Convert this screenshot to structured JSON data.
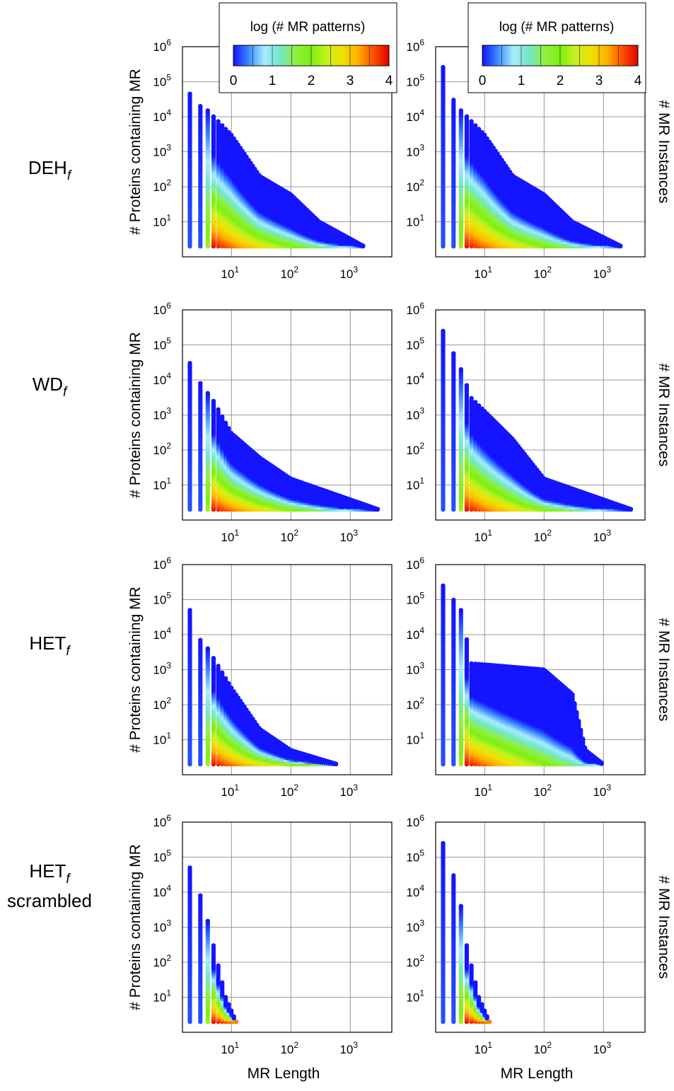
{
  "colorbar": {
    "title": "log (# MR patterns)",
    "ticks": [
      "0",
      "1",
      "2",
      "3",
      "4"
    ],
    "stops": [
      "#1414ff",
      "#3c8cff",
      "#a8ecff",
      "#70e8c8",
      "#90f040",
      "#7cf010",
      "#c8f020",
      "#f0e000",
      "#ffb000",
      "#ff5000",
      "#e00000"
    ]
  },
  "row_labels": [
    {
      "text": "DEH",
      "sub": "f",
      "line2": ""
    },
    {
      "text": "WD",
      "sub": "f",
      "line2": ""
    },
    {
      "text": "HET",
      "sub": "f",
      "line2": ""
    },
    {
      "text": "HET",
      "sub": "f",
      "line2": "scrambled"
    }
  ],
  "left_ylabel": "# Proteins containing MR",
  "right_ylabel": "# MR Instances",
  "xlabel": "MR Length",
  "x_ticks": [
    {
      "b": "10",
      "e": "1"
    },
    {
      "b": "10",
      "e": "2"
    },
    {
      "b": "10",
      "e": "3"
    }
  ],
  "y_ticks": [
    {
      "b": "10",
      "e": "1"
    },
    {
      "b": "10",
      "e": "2"
    },
    {
      "b": "10",
      "e": "3"
    },
    {
      "b": "10",
      "e": "4"
    },
    {
      "b": "10",
      "e": "5"
    },
    {
      "b": "10",
      "e": "6"
    }
  ],
  "chart_data": [
    {
      "type": "scatter",
      "panel": "DEHf - proteins",
      "xlabel": "",
      "ylabel": "# Proteins containing MR",
      "xscale": "log",
      "yscale": "log",
      "xlim": [
        1.5,
        5000
      ],
      "ylim": [
        1,
        1000000
      ],
      "grid": true,
      "color_scale": "log (# MR patterns)",
      "series": [
        {
          "values": [
            {
              "length": 2,
              "ymax": 45000
            },
            {
              "length": 3,
              "ymax": 20000
            },
            {
              "length": 4,
              "ymax": 15000
            },
            {
              "length": 10,
              "ymax": 3000
            },
            {
              "length": 30,
              "ymax": 200
            },
            {
              "length": 100,
              "ymax": 60
            },
            {
              "length": 300,
              "ymax": 10
            },
            {
              "length": 1700,
              "ymax": 2
            }
          ]
        }
      ]
    },
    {
      "type": "scatter",
      "panel": "DEHf - instances",
      "xlabel": "",
      "ylabel": "# MR Instances",
      "xscale": "log",
      "yscale": "log",
      "xlim": [
        1.5,
        5000
      ],
      "ylim": [
        1,
        1000000
      ],
      "grid": true,
      "color_scale": "log (# MR patterns)",
      "series": [
        {
          "values": [
            {
              "length": 2,
              "ymax": 260000
            },
            {
              "length": 3,
              "ymax": 30000
            },
            {
              "length": 4,
              "ymax": 15000
            },
            {
              "length": 10,
              "ymax": 3000
            },
            {
              "length": 30,
              "ymax": 200
            },
            {
              "length": 100,
              "ymax": 60
            },
            {
              "length": 300,
              "ymax": 10
            },
            {
              "length": 2000,
              "ymax": 2
            }
          ]
        }
      ]
    },
    {
      "type": "scatter",
      "panel": "WDf - proteins",
      "xlabel": "",
      "ylabel": "# Proteins containing MR",
      "xscale": "log",
      "yscale": "log",
      "xlim": [
        1.5,
        5000
      ],
      "ylim": [
        1,
        1000000
      ],
      "grid": true,
      "color_scale": "log (# MR patterns)",
      "series": [
        {
          "values": [
            {
              "length": 2,
              "ymax": 30000
            },
            {
              "length": 3,
              "ymax": 8000
            },
            {
              "length": 5,
              "ymax": 2500
            },
            {
              "length": 10,
              "ymax": 300
            },
            {
              "length": 30,
              "ymax": 60
            },
            {
              "length": 100,
              "ymax": 15
            },
            {
              "length": 3000,
              "ymax": 2
            }
          ]
        }
      ]
    },
    {
      "type": "scatter",
      "panel": "WDf - instances",
      "xlabel": "",
      "ylabel": "# MR Instances",
      "xscale": "log",
      "yscale": "log",
      "xlim": [
        1.5,
        5000
      ],
      "ylim": [
        1,
        1000000
      ],
      "grid": true,
      "color_scale": "log (# MR patterns)",
      "series": [
        {
          "values": [
            {
              "length": 2,
              "ymax": 250000
            },
            {
              "length": 4,
              "ymax": 20000
            },
            {
              "length": 6,
              "ymax": 3000
            },
            {
              "length": 30,
              "ymax": 200
            },
            {
              "length": 100,
              "ymax": 15
            },
            {
              "length": 3000,
              "ymax": 2
            }
          ]
        }
      ]
    },
    {
      "type": "scatter",
      "panel": "HETf - proteins",
      "xlabel": "",
      "ylabel": "# Proteins containing MR",
      "xscale": "log",
      "yscale": "log",
      "xlim": [
        1.5,
        5000
      ],
      "ylim": [
        1,
        1000000
      ],
      "grid": true,
      "color_scale": "log (# MR patterns)",
      "series": [
        {
          "values": [
            {
              "length": 2,
              "ymax": 50000
            },
            {
              "length": 3,
              "ymax": 7000
            },
            {
              "length": 4,
              "ymax": 4000
            },
            {
              "length": 10,
              "ymax": 300
            },
            {
              "length": 30,
              "ymax": 20
            },
            {
              "length": 100,
              "ymax": 5
            },
            {
              "length": 600,
              "ymax": 2
            }
          ]
        }
      ]
    },
    {
      "type": "scatter",
      "panel": "HETf - instances",
      "xlabel": "",
      "ylabel": "# MR Instances",
      "xscale": "log",
      "yscale": "log",
      "xlim": [
        1.5,
        5000
      ],
      "ylim": [
        1,
        1000000
      ],
      "grid": true,
      "color_scale": "log (# MR patterns)",
      "series": [
        {
          "values": [
            {
              "length": 2,
              "ymax": 250000
            },
            {
              "length": 4,
              "ymax": 50000
            },
            {
              "length": 6,
              "ymax": 1500
            },
            {
              "length": 100,
              "ymax": 1000
            },
            {
              "length": 300,
              "ymax": 200
            },
            {
              "length": 500,
              "ymax": 5
            },
            {
              "length": 1000,
              "ymax": 2
            }
          ]
        }
      ]
    },
    {
      "type": "scatter",
      "panel": "HETf scrambled - proteins",
      "xlabel": "MR Length",
      "ylabel": "# Proteins containing MR",
      "xscale": "log",
      "yscale": "log",
      "xlim": [
        1.5,
        5000
      ],
      "ylim": [
        1,
        1000000
      ],
      "grid": true,
      "color_scale": "log (# MR patterns)",
      "series": [
        {
          "values": [
            {
              "length": 2,
              "ymax": 50000
            },
            {
              "length": 3,
              "ymax": 8000
            },
            {
              "length": 4,
              "ymax": 1500
            },
            {
              "length": 5,
              "ymax": 300
            },
            {
              "length": 8,
              "ymax": 10
            },
            {
              "length": 12,
              "ymax": 2
            }
          ]
        }
      ]
    },
    {
      "type": "scatter",
      "panel": "HETf scrambled - instances",
      "xlabel": "MR Length",
      "ylabel": "# MR Instances",
      "xscale": "log",
      "yscale": "log",
      "xlim": [
        1.5,
        5000
      ],
      "ylim": [
        1,
        1000000
      ],
      "grid": true,
      "color_scale": "log (# MR patterns)",
      "series": [
        {
          "values": [
            {
              "length": 2,
              "ymax": 250000
            },
            {
              "length": 3,
              "ymax": 30000
            },
            {
              "length": 4,
              "ymax": 4000
            },
            {
              "length": 5,
              "ymax": 300
            },
            {
              "length": 8,
              "ymax": 10
            },
            {
              "length": 12,
              "ymax": 2
            }
          ]
        }
      ]
    }
  ]
}
